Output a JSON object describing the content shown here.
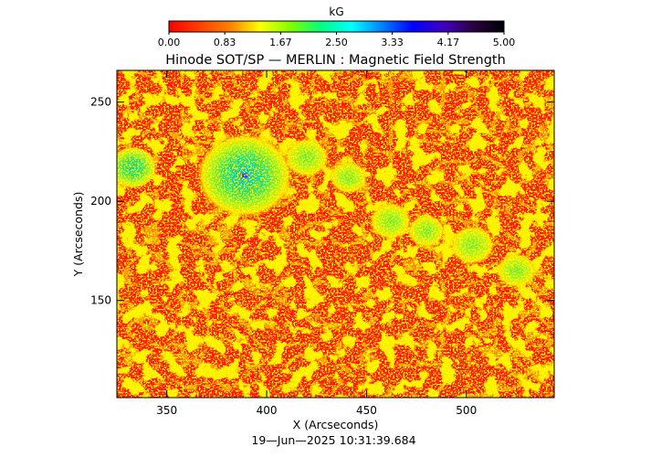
{
  "chart_data": {
    "type": "heatmap",
    "title": "Hinode SOT/SP — MERLIN : Magnetic Field Strength",
    "xlabel": "X (Arcseconds)",
    "ylabel": "Y (Arcseconds)",
    "footer": "19—Jun—2025 10:31:39.684",
    "colorbar": {
      "label": "kG",
      "range": [
        0.0,
        5.0
      ],
      "ticks": [
        "0.00",
        "0.83",
        "1.67",
        "2.50",
        "3.33",
        "4.17",
        "5.00"
      ],
      "stops": [
        "#ff0000",
        "#ff4000",
        "#ff8000",
        "#ffff00",
        "#80ff00",
        "#00ff80",
        "#00ffff",
        "#0080ff",
        "#0000ff",
        "#4000c0",
        "#2a0040",
        "#000000"
      ]
    },
    "x_axis": {
      "ticks": [
        350,
        400,
        450,
        500
      ],
      "range": [
        325,
        544
      ]
    },
    "y_axis": {
      "ticks": [
        150,
        200,
        250
      ],
      "range": [
        101,
        266
      ]
    },
    "features": [
      {
        "name": "sunspot",
        "x": 389,
        "y": 213,
        "peak_kG": 3.3
      },
      {
        "name": "pore",
        "x": 333,
        "y": 217,
        "peak_kG": 2.6
      },
      {
        "name": "plage",
        "x": 420,
        "y": 222,
        "peak_kG": 1.9
      },
      {
        "name": "plage",
        "x": 462,
        "y": 190,
        "peak_kG": 1.8
      },
      {
        "name": "plage",
        "x": 503,
        "y": 178,
        "peak_kG": 1.9
      },
      {
        "name": "plage",
        "x": 525,
        "y": 165,
        "peak_kG": 1.7
      },
      {
        "name": "plage",
        "x": 480,
        "y": 185,
        "peak_kG": 1.6
      },
      {
        "name": "plage",
        "x": 441,
        "y": 212,
        "peak_kG": 1.6
      }
    ]
  }
}
